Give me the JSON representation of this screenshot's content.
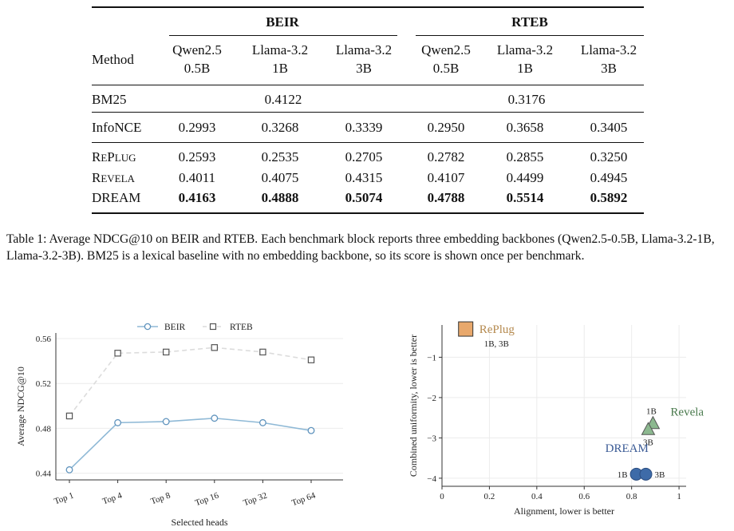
{
  "table": {
    "method_header": "Method",
    "groups": [
      "BEIR",
      "RTEB"
    ],
    "models": [
      [
        "Qwen2.5",
        "0.5B"
      ],
      [
        "Llama-3.2",
        "1B"
      ],
      [
        "Llama-3.2",
        "3B"
      ],
      [
        "Qwen2.5",
        "0.5B"
      ],
      [
        "Llama-3.2",
        "1B"
      ],
      [
        "Llama-3.2",
        "3B"
      ]
    ],
    "bm25": {
      "name": "BM25",
      "beir": "0.4122",
      "rteb": "0.3176"
    },
    "infonce": {
      "name": "InfoNCE",
      "values": [
        "0.2993",
        "0.3268",
        "0.3339",
        "0.2950",
        "0.3658",
        "0.3405"
      ]
    },
    "replug": {
      "name_big": "R",
      "name_small": "E",
      "name_big2": "P",
      "name_small2": "LUG",
      "values": [
        "0.2593",
        "0.2535",
        "0.2705",
        "0.2782",
        "0.2855",
        "0.3250"
      ]
    },
    "revela": {
      "name_big": "R",
      "name_small": "EVELA",
      "values": [
        "0.4011",
        "0.4075",
        "0.4315",
        "0.4107",
        "0.4499",
        "0.4945"
      ]
    },
    "dream": {
      "name": "DREAM",
      "values": [
        "0.4163",
        "0.4888",
        "0.5074",
        "0.4788",
        "0.5514",
        "0.5892"
      ]
    }
  },
  "caption": "Table 1: Average NDCG@10 on BEIR and RTEB. Each benchmark block reports three embedding backbones (Qwen2.5-0.5B, Llama-3.2-1B, Llama-3.2-3B). BM25 is a lexical baseline with no embedding backbone, so its score is shown once per benchmark.",
  "chart_data": [
    {
      "type": "line",
      "categories": [
        "Top 1",
        "Top 4",
        "Top 8",
        "Top 16",
        "Top 32",
        "Top 64"
      ],
      "series": [
        {
          "name": "BEIR",
          "values": [
            0.443,
            0.485,
            0.486,
            0.489,
            0.485,
            0.478
          ],
          "color": "#8fb9d6"
        },
        {
          "name": "RTEB",
          "values": [
            0.491,
            0.547,
            0.548,
            0.552,
            0.548,
            0.541
          ],
          "color": "#dcdcdc"
        }
      ],
      "xlabel": "Selected heads",
      "ylabel": "Average NDCG@10",
      "yticks": [
        "0.44",
        "0.48",
        "0.52",
        "0.56"
      ],
      "ylim": [
        0.434,
        0.565
      ],
      "grid": "horizontal",
      "legend": "top-center"
    },
    {
      "type": "scatter",
      "xlabel": "Alignment, lower is better",
      "ylabel": "Combined uniformity, lower is better",
      "xticks": [
        "0",
        "0.2",
        "0.4",
        "0.6",
        "0.8",
        "1"
      ],
      "yticks": [
        "−1",
        "−2",
        "−3",
        "−4"
      ],
      "xlim": [
        0,
        1.03
      ],
      "ylim": [
        -4.2,
        -0.2
      ],
      "grid": "both",
      "groups": [
        {
          "name": "RePlug",
          "color": "#e8a86c",
          "text_color": "#b58a4f",
          "marker": "square",
          "points": [
            {
              "x": 0.1,
              "y": -0.3
            }
          ],
          "point_labels": [
            "1B, 3B"
          ]
        },
        {
          "name": "Revela",
          "color": "#8cb88f",
          "text_color": "#4a7a4d",
          "marker": "triangle",
          "points": [
            {
              "x": 0.89,
              "y": -2.65
            },
            {
              "x": 0.87,
              "y": -2.8
            }
          ],
          "point_labels": [
            "1B",
            "3B"
          ]
        },
        {
          "name": "DREAM",
          "color": "#3e6ba8",
          "text_color": "#3a5a95",
          "marker": "circle",
          "points": [
            {
              "x": 0.82,
              "y": -3.9
            },
            {
              "x": 0.86,
              "y": -3.9
            }
          ],
          "point_labels": [
            "1B",
            "3B"
          ]
        }
      ]
    }
  ]
}
